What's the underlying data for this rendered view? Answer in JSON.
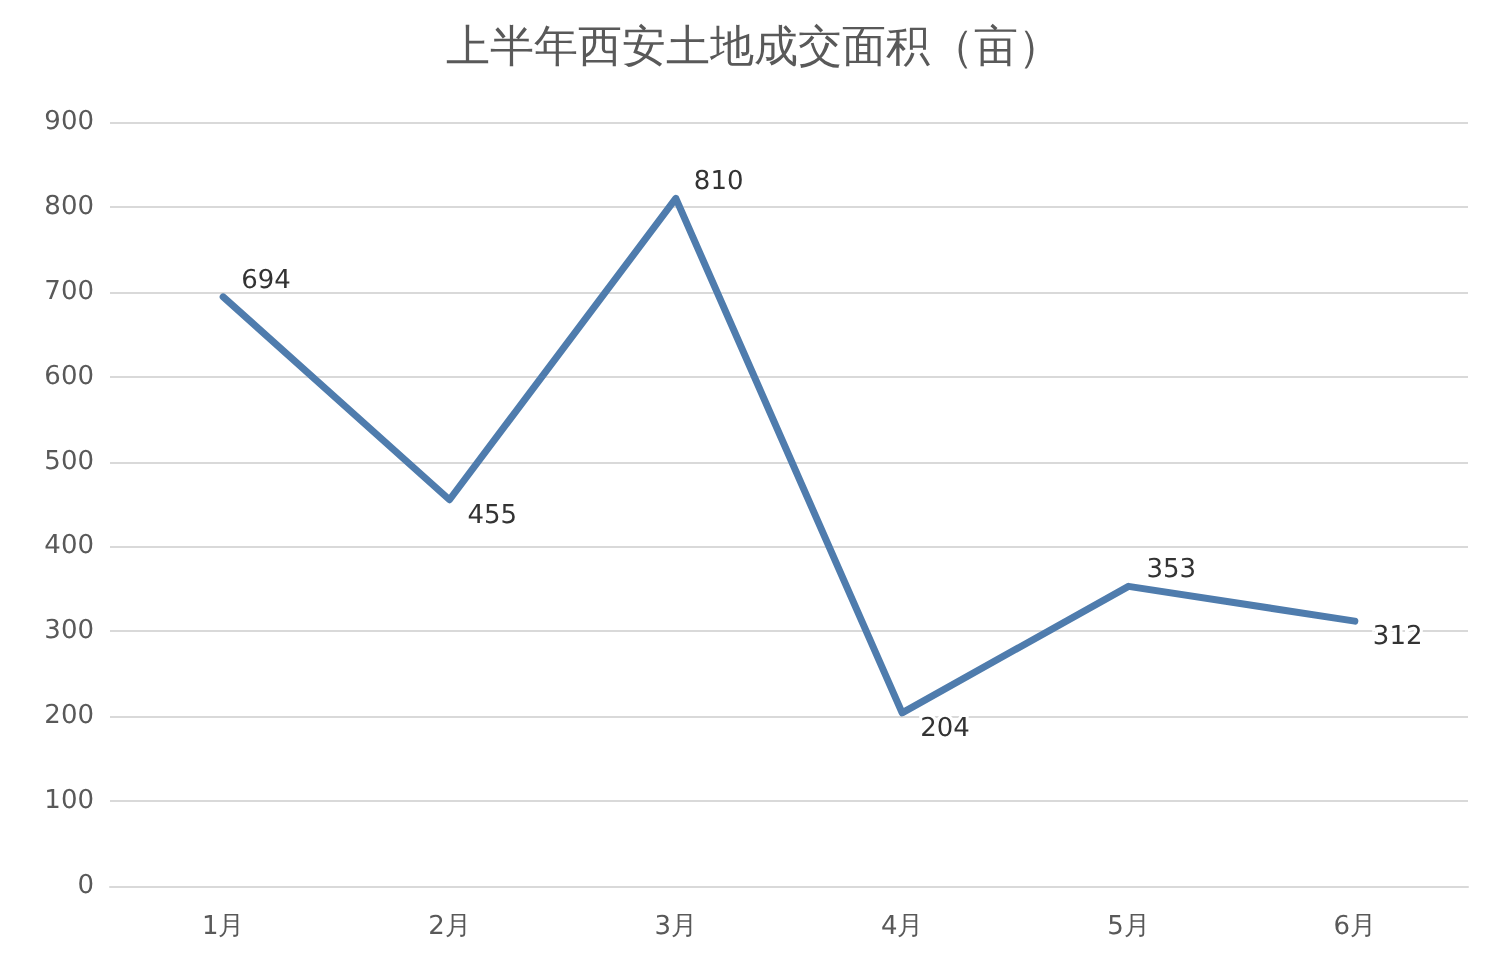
{
  "chart_data": {
    "type": "line",
    "title": "上半年西安土地成交面积（亩）",
    "categories": [
      "1月",
      "2月",
      "3月",
      "4月",
      "5月",
      "6月"
    ],
    "series": [
      {
        "color": "#4f7cad",
        "values": [
          694,
          455,
          810,
          204,
          353,
          312
        ]
      }
    ],
    "ylim": [
      0,
      900
    ],
    "yticks": [
      0,
      100,
      200,
      300,
      400,
      500,
      600,
      700,
      800,
      900
    ],
    "grid": "y",
    "marker": "none",
    "line_style": "solid",
    "data_labels": true
  }
}
